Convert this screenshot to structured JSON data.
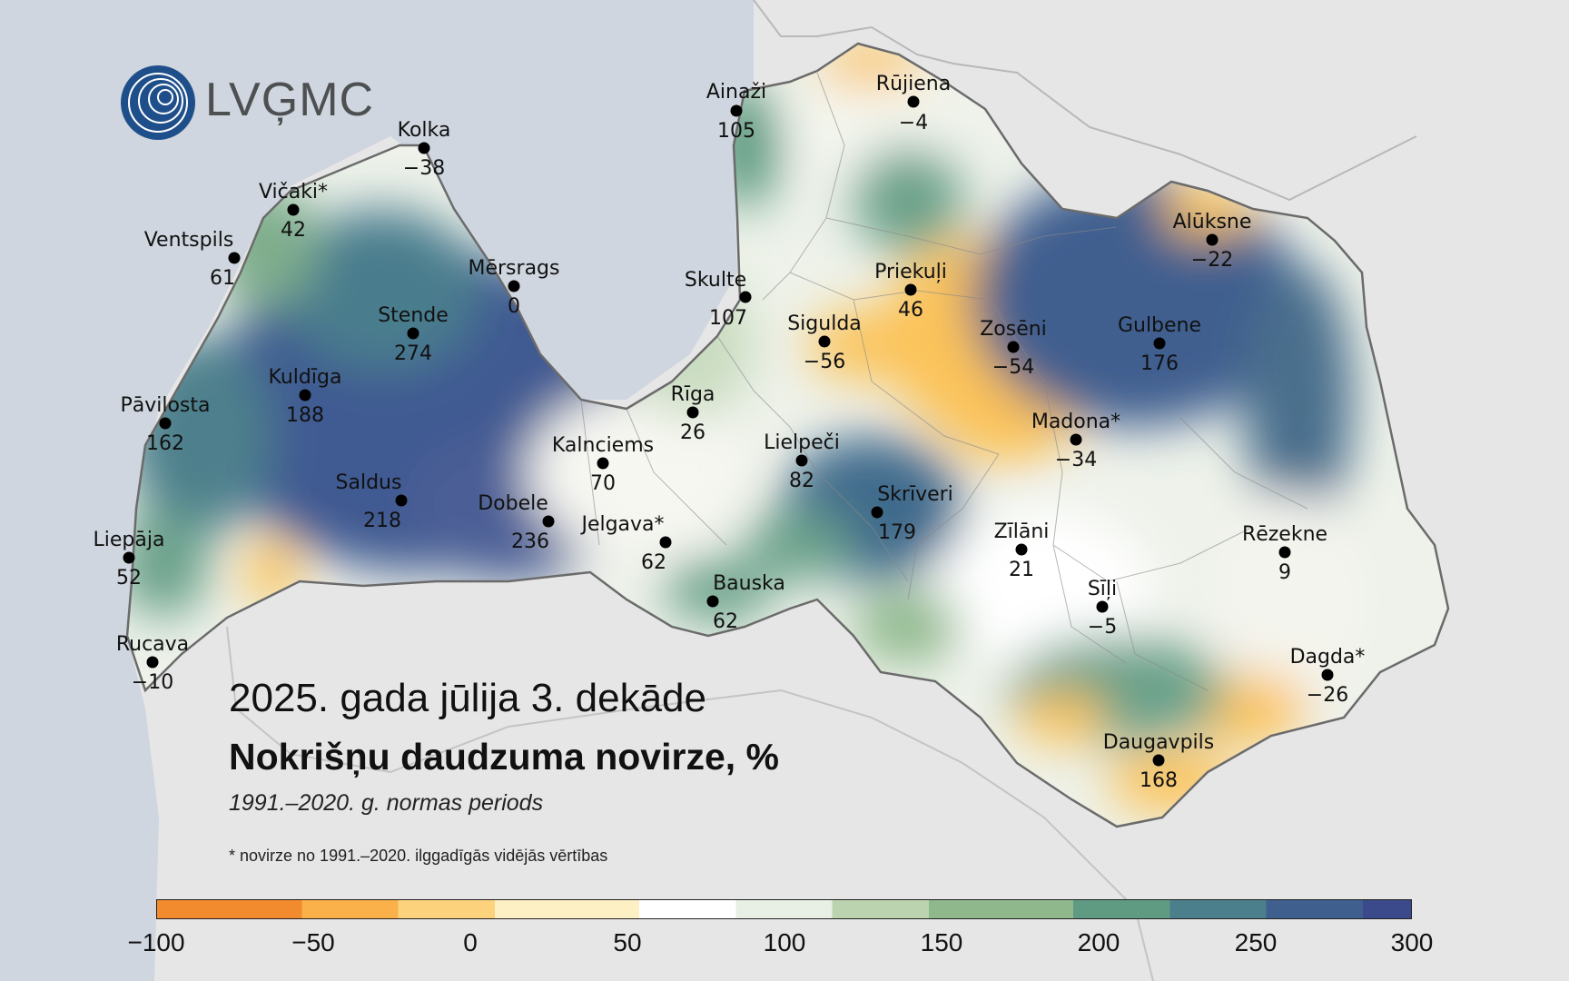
{
  "logo": {
    "text": "LVĢMC"
  },
  "title": {
    "line1": "2025. gada jūlija 3. dekāde",
    "line2": "Nokrišņu daudzuma novirze, %",
    "line3": "1991.–2020. g. normas periods"
  },
  "footnote": "* novirze no 1991.–2020. ilggadīgās vidējās vērtības",
  "colors": {
    "land_outside": "#e2e2e2",
    "sea": "#cfd6df",
    "scale": [
      "#f28b2e",
      "#fab14a",
      "#fcd37c",
      "#fdf0c4",
      "#ffffff",
      "#e8efe4",
      "#bcd3b0",
      "#8fb98d",
      "#5f9b82",
      "#4a7f8b",
      "#3f5f8f",
      "#3a4a8a"
    ]
  },
  "stations": [
    {
      "name": "Ainaži",
      "value": "105"
    },
    {
      "name": "Rūjiena",
      "value": "−4"
    },
    {
      "name": "Kolka",
      "value": "−38"
    },
    {
      "name": "Vičaki*",
      "value": "42"
    },
    {
      "name": "Ventspils",
      "value": "61"
    },
    {
      "name": "Mērsrags",
      "value": "0"
    },
    {
      "name": "Skulte",
      "value": "107"
    },
    {
      "name": "Priekuļi",
      "value": "46"
    },
    {
      "name": "Alūksne",
      "value": "−22"
    },
    {
      "name": "Stende",
      "value": "274"
    },
    {
      "name": "Sigulda",
      "value": "−56"
    },
    {
      "name": "Zosēni",
      "value": "−54"
    },
    {
      "name": "Gulbene",
      "value": "176"
    },
    {
      "name": "Kuldīga",
      "value": "188"
    },
    {
      "name": "Pāvilosta",
      "value": "162"
    },
    {
      "name": "Rīga",
      "value": "26"
    },
    {
      "name": "Madona*",
      "value": "−34"
    },
    {
      "name": "Kalnciems",
      "value": "70"
    },
    {
      "name": "Lielpeči",
      "value": "82"
    },
    {
      "name": "Saldus",
      "value": "218"
    },
    {
      "name": "Dobele",
      "value": "236"
    },
    {
      "name": "Skrīveri",
      "value": "179"
    },
    {
      "name": "Jelgava*",
      "value": "62"
    },
    {
      "name": "Zīlāni",
      "value": "21"
    },
    {
      "name": "Rēzekne",
      "value": "9"
    },
    {
      "name": "Liepāja",
      "value": "52"
    },
    {
      "name": "Bauska",
      "value": "62"
    },
    {
      "name": "Sīļi",
      "value": "−5"
    },
    {
      "name": "Rucava",
      "value": "−10"
    },
    {
      "name": "Dagda*",
      "value": "−26"
    },
    {
      "name": "Daugavpils",
      "value": "168"
    }
  ],
  "legend": {
    "ticks": [
      "−100",
      "−50",
      "0",
      "50",
      "100",
      "150",
      "200",
      "250",
      "300"
    ]
  }
}
